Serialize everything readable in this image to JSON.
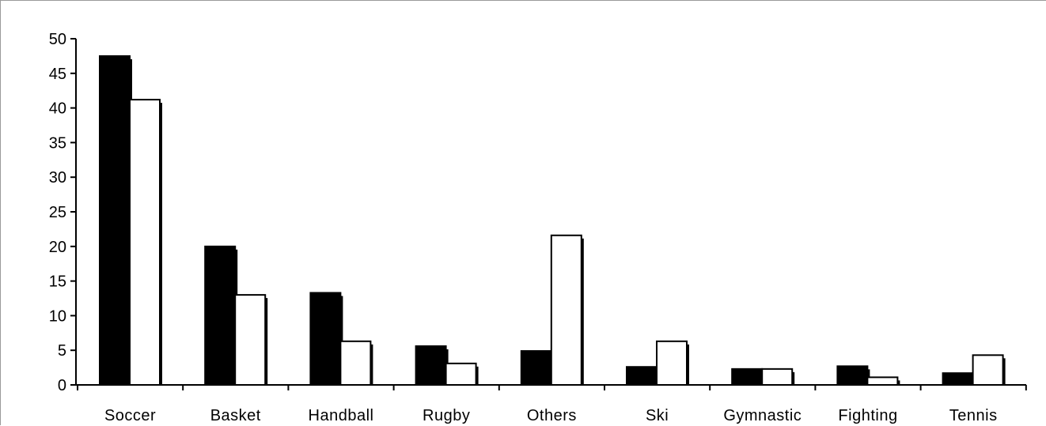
{
  "chart_data": {
    "type": "bar",
    "categories": [
      "Soccer",
      "Basket",
      "Handball",
      "Rugby",
      "Others",
      "Ski",
      "Gymnastic",
      "Fighting",
      "Tennis"
    ],
    "series": [
      {
        "values": [
          47.5,
          20,
          13.3,
          5.6,
          4.9,
          2.6,
          2.3,
          2.7,
          1.7
        ],
        "color": "#000000"
      },
      {
        "values": [
          41.2,
          13,
          6.3,
          3.1,
          21.6,
          6.3,
          2.3,
          1.1,
          4.3
        ],
        "color": "#ffffff"
      }
    ],
    "yticks": [
      "0",
      "5",
      "10",
      "15",
      "20",
      "25",
      "30",
      "35",
      "40",
      "45",
      "50"
    ],
    "ylim": [
      0,
      50
    ],
    "grid": false,
    "legend": "none",
    "title": "",
    "xlabel": "",
    "ylabel": ""
  }
}
